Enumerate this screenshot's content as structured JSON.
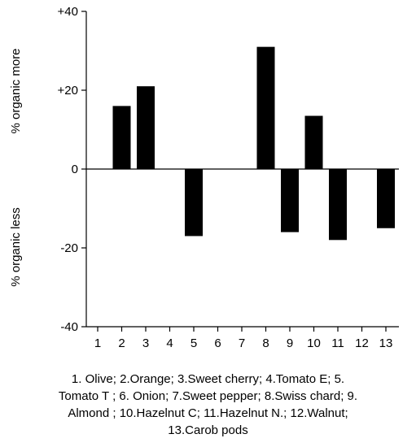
{
  "chart_data": {
    "type": "bar",
    "categories": [
      "1",
      "2",
      "3",
      "4",
      "5",
      "6",
      "7",
      "8",
      "9",
      "10",
      "11",
      "12",
      "13"
    ],
    "values": [
      0,
      16,
      21,
      0,
      -17,
      0,
      0,
      31,
      -16,
      13.5,
      -18,
      0,
      -15
    ],
    "ylim": [
      -40,
      40
    ],
    "ytick_labels": [
      "+40",
      "+20",
      "0",
      "-20",
      "-40"
    ],
    "ytick_values": [
      40,
      20,
      0,
      -20,
      -40
    ],
    "ylabel_upper": "% organic more",
    "ylabel_lower": "% organic less",
    "bar_color": "#000000",
    "grid": false
  },
  "caption_lines": [
    "1. Olive; 2.Orange; 3.Sweet cherry; 4.Tomato E; 5.",
    "Tomato T ; 6. Onion; 7.Sweet pepper; 8.Swiss chard; 9.",
    "Almond ; 10.Hazelnut C; 11.Hazelnut N.; 12.Walnut;",
    "13.Carob pods"
  ]
}
